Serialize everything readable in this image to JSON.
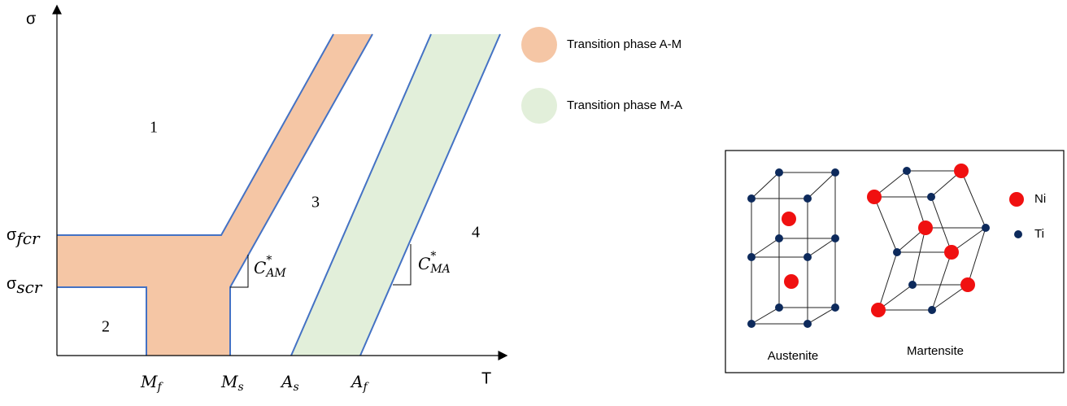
{
  "axes": {
    "y_label": "σ",
    "x_label": "T"
  },
  "y_ticks": [
    {
      "base": "σ",
      "sub": "fcr"
    },
    {
      "base": "σ",
      "sub": "scr"
    }
  ],
  "x_ticks": [
    {
      "base": "M",
      "sub": "f"
    },
    {
      "base": "M",
      "sub": "s"
    },
    {
      "base": "A",
      "sub": "s"
    },
    {
      "base": "A",
      "sub": "f"
    }
  ],
  "regions": [
    "1",
    "2",
    "3",
    "4"
  ],
  "slopes": [
    {
      "base": "C",
      "sup": "*",
      "sub": "AM"
    },
    {
      "base": "C",
      "sup": "*",
      "sub": "MA"
    }
  ],
  "legend": [
    "Transition phase A-M",
    "Transition phase M-A"
  ],
  "inset": {
    "atoms": [
      "Ni",
      "Ti"
    ],
    "structures": [
      "Austenite",
      "Martensite"
    ]
  }
}
